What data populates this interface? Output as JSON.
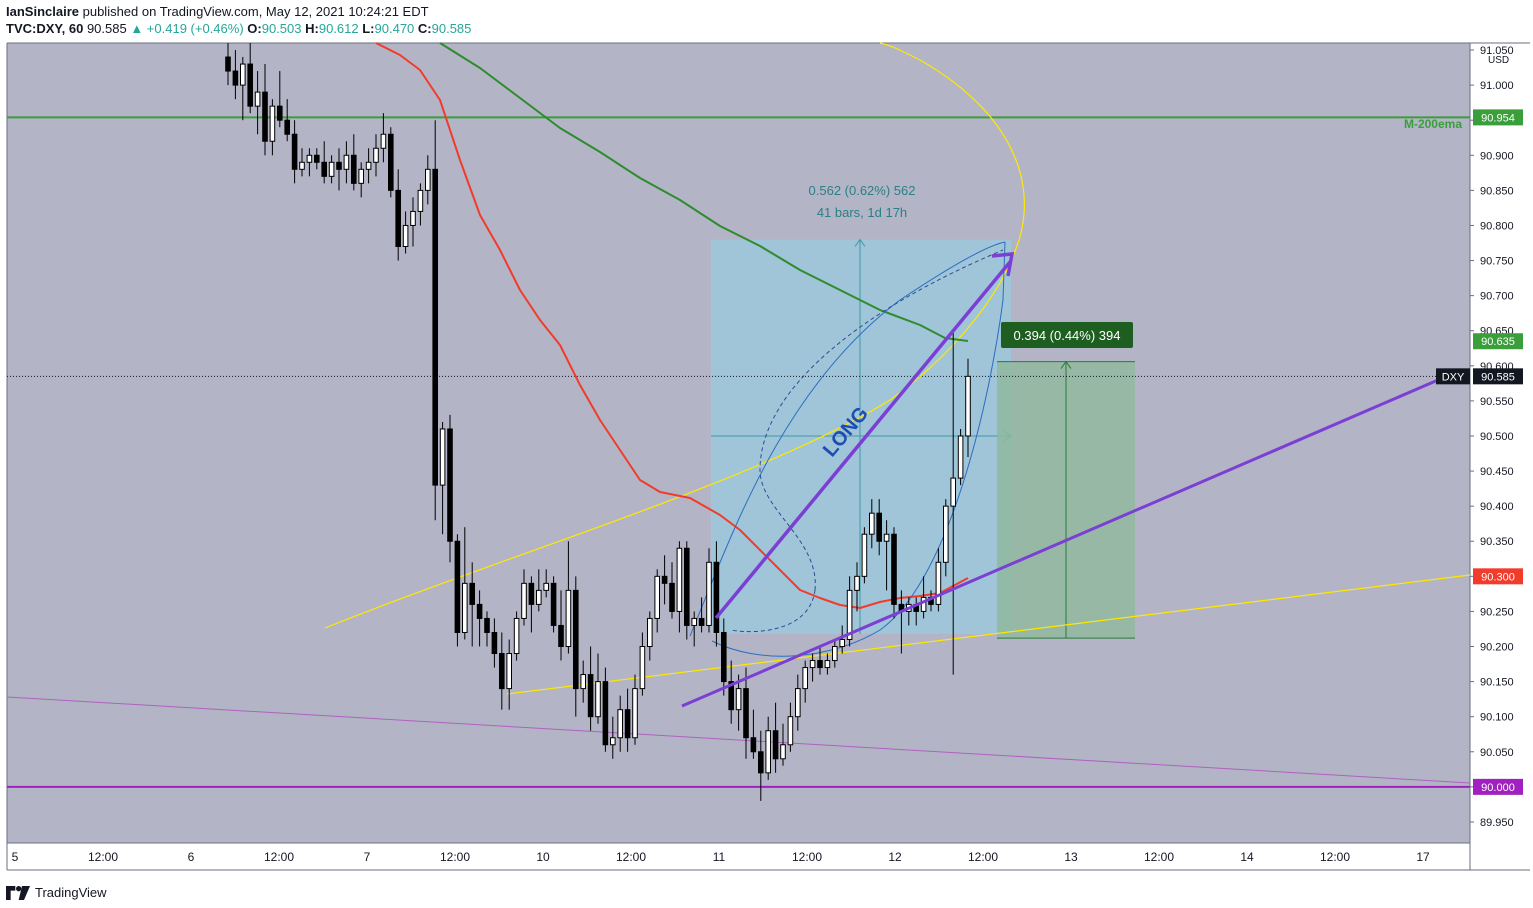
{
  "header": {
    "author": "IanSinclaire",
    "published_text": "published on TradingView.com, May 12, 2021 10:24:21 EDT",
    "symbol": "TVC:DXY, 60",
    "last": "90.585",
    "change": "▲ +0.419 (+0.46%)",
    "o_label": "O:",
    "o": "90.503",
    "h_label": "H:",
    "h": "90.612",
    "l_label": "L:",
    "l": "90.470",
    "c_label": "C:",
    "c": "90.585"
  },
  "footer": {
    "brand": "TradingView"
  },
  "colors": {
    "background": "#b3b5c6",
    "ema200": "#2e8b2e",
    "red_ma": "#f23b2b",
    "yellow": "#ffe800",
    "purple": "#7b3fd4",
    "magenta": "#a020c0",
    "axis_bg": "#ffffff",
    "long_box": "#8fcfe8",
    "profit_box": "#8fb99b"
  },
  "chart_data": {
    "type": "candlestick",
    "symbol": "DXY",
    "interval": "60",
    "currency": "USD",
    "ylim": [
      89.92,
      91.06
    ],
    "y_ticks": [
      "89.950",
      "90.000",
      "90.050",
      "90.100",
      "90.150",
      "90.200",
      "90.250",
      "90.300",
      "90.350",
      "90.400",
      "90.450",
      "90.500",
      "90.550",
      "90.600",
      "90.650",
      "90.700",
      "90.750",
      "90.800",
      "90.850",
      "90.900",
      "90.950",
      "91.000",
      "91.050"
    ],
    "x_ticks": [
      "5",
      "12:00",
      "6",
      "12:00",
      "7",
      "12:00",
      "10",
      "12:00",
      "11",
      "12:00",
      "12",
      "12:00",
      "13",
      "12:00",
      "14",
      "12:00",
      "17"
    ],
    "price_labels": [
      {
        "text": "90.954",
        "value": 90.954,
        "color": "#3a9e3a",
        "note": "M-200ema"
      },
      {
        "text": "90.635",
        "value": 90.635,
        "color": "#3a9e3a"
      },
      {
        "text": "90.585",
        "value": 90.585,
        "color": "#131722",
        "prefix": "DXY"
      },
      {
        "text": "90.300",
        "value": 90.3,
        "color": "#f23b2b"
      },
      {
        "text": "90.000",
        "value": 90.0,
        "color": "#a020c0"
      }
    ],
    "horizontal_lines": [
      {
        "value": 90.954,
        "color": "#3a9e3a"
      },
      {
        "value": 90.0,
        "color": "#a020c0"
      }
    ],
    "annotations": {
      "ema_label": "M-200ema",
      "long_label": "LONG",
      "measure_top_line1": "0.562 (0.62%) 562",
      "measure_top_line2": "41 bars, 1d 17h",
      "measure_right": "0.394 (0.44%) 394"
    },
    "candles": [
      [
        91.04,
        91.06,
        91.0,
        91.02
      ],
      [
        91.02,
        91.05,
        90.98,
        91.0
      ],
      [
        91.0,
        91.04,
        90.95,
        91.03
      ],
      [
        91.03,
        91.06,
        90.96,
        90.97
      ],
      [
        90.97,
        91.02,
        90.93,
        90.99
      ],
      [
        90.99,
        91.03,
        90.9,
        90.92
      ],
      [
        90.92,
        90.98,
        90.9,
        90.97
      ],
      [
        90.97,
        91.02,
        90.94,
        90.95
      ],
      [
        90.95,
        90.98,
        90.92,
        90.93
      ],
      [
        90.93,
        90.95,
        90.86,
        90.88
      ],
      [
        90.88,
        90.91,
        90.87,
        90.89
      ],
      [
        90.89,
        90.91,
        90.87,
        90.9
      ],
      [
        90.9,
        90.91,
        90.88,
        90.89
      ],
      [
        90.89,
        90.92,
        90.86,
        90.87
      ],
      [
        90.87,
        90.9,
        90.86,
        90.89
      ],
      [
        90.89,
        90.91,
        90.85,
        90.88
      ],
      [
        90.88,
        90.92,
        90.86,
        90.9
      ],
      [
        90.9,
        90.93,
        90.85,
        90.86
      ],
      [
        90.86,
        90.89,
        90.84,
        90.88
      ],
      [
        90.88,
        90.91,
        90.86,
        90.89
      ],
      [
        90.89,
        90.93,
        90.87,
        90.91
      ],
      [
        90.91,
        90.96,
        90.89,
        90.93
      ],
      [
        90.93,
        90.94,
        90.84,
        90.85
      ],
      [
        90.85,
        90.88,
        90.75,
        90.77
      ],
      [
        90.77,
        90.82,
        90.76,
        90.8
      ],
      [
        90.8,
        90.84,
        90.77,
        90.82
      ],
      [
        90.82,
        90.86,
        90.8,
        90.85
      ],
      [
        90.85,
        90.9,
        90.83,
        90.88
      ],
      [
        90.88,
        90.95,
        90.38,
        90.43
      ],
      [
        90.43,
        90.52,
        90.36,
        90.51
      ],
      [
        90.51,
        90.53,
        90.32,
        90.35
      ],
      [
        90.35,
        90.36,
        90.2,
        90.22
      ],
      [
        90.22,
        90.37,
        90.21,
        90.29
      ],
      [
        90.29,
        90.32,
        90.2,
        90.26
      ],
      [
        90.26,
        90.28,
        90.2,
        90.24
      ],
      [
        90.24,
        90.25,
        90.2,
        90.22
      ],
      [
        90.22,
        90.24,
        90.17,
        90.19
      ],
      [
        90.19,
        90.22,
        90.11,
        90.14
      ],
      [
        90.14,
        90.21,
        90.11,
        90.19
      ],
      [
        90.19,
        90.25,
        90.18,
        90.24
      ],
      [
        90.24,
        90.31,
        90.23,
        90.29
      ],
      [
        90.29,
        90.3,
        90.22,
        90.26
      ],
      [
        90.26,
        90.31,
        90.25,
        90.28
      ],
      [
        90.28,
        90.31,
        90.27,
        90.29
      ],
      [
        90.29,
        90.3,
        90.22,
        90.23
      ],
      [
        90.23,
        90.28,
        90.18,
        90.2
      ],
      [
        90.2,
        90.35,
        90.19,
        90.28
      ],
      [
        90.28,
        90.3,
        90.1,
        90.14
      ],
      [
        90.14,
        90.18,
        90.12,
        90.16
      ],
      [
        90.16,
        90.2,
        90.08,
        90.1
      ],
      [
        90.1,
        90.19,
        90.09,
        90.15
      ],
      [
        90.15,
        90.17,
        90.05,
        90.06
      ],
      [
        90.06,
        90.1,
        90.04,
        90.07
      ],
      [
        90.07,
        90.13,
        90.05,
        90.11
      ],
      [
        90.11,
        90.14,
        90.05,
        90.07
      ],
      [
        90.07,
        90.16,
        90.06,
        90.14
      ],
      [
        90.14,
        90.22,
        90.13,
        90.2
      ],
      [
        90.2,
        90.25,
        90.18,
        90.24
      ],
      [
        90.24,
        90.31,
        90.22,
        90.3
      ],
      [
        90.3,
        90.33,
        90.26,
        90.29
      ],
      [
        90.29,
        90.32,
        90.24,
        90.25
      ],
      [
        90.25,
        90.35,
        90.22,
        90.34
      ],
      [
        90.34,
        90.35,
        90.21,
        90.23
      ],
      [
        90.23,
        90.25,
        90.2,
        90.24
      ],
      [
        90.24,
        90.27,
        90.22,
        90.23
      ],
      [
        90.23,
        90.34,
        90.22,
        90.32
      ],
      [
        90.32,
        90.35,
        90.2,
        90.22
      ],
      [
        90.22,
        90.24,
        90.13,
        90.15
      ],
      [
        90.15,
        90.18,
        90.09,
        90.11
      ],
      [
        90.11,
        90.16,
        90.08,
        90.14
      ],
      [
        90.14,
        90.17,
        90.04,
        90.07
      ],
      [
        90.07,
        90.11,
        90.04,
        90.05
      ],
      [
        90.05,
        90.08,
        89.98,
        90.02
      ],
      [
        90.02,
        90.1,
        90.01,
        90.08
      ],
      [
        90.08,
        90.12,
        90.02,
        90.04
      ],
      [
        90.04,
        90.09,
        90.03,
        90.06
      ],
      [
        90.06,
        90.12,
        90.05,
        90.1
      ],
      [
        90.1,
        90.16,
        90.08,
        90.14
      ],
      [
        90.14,
        90.18,
        90.12,
        90.17
      ],
      [
        90.17,
        90.19,
        90.15,
        90.18
      ],
      [
        90.18,
        90.2,
        90.16,
        90.17
      ],
      [
        90.17,
        90.19,
        90.16,
        90.18
      ],
      [
        90.18,
        90.21,
        90.17,
        90.2
      ],
      [
        90.2,
        90.23,
        90.19,
        90.21
      ],
      [
        90.21,
        90.3,
        90.2,
        90.28
      ],
      [
        90.28,
        90.32,
        90.25,
        90.3
      ],
      [
        90.3,
        90.37,
        90.29,
        90.36
      ],
      [
        90.36,
        90.41,
        90.34,
        90.39
      ],
      [
        90.39,
        90.41,
        90.33,
        90.35
      ],
      [
        90.35,
        90.38,
        90.28,
        90.36
      ],
      [
        90.36,
        90.37,
        90.24,
        90.26
      ],
      [
        90.26,
        90.28,
        90.19,
        90.25
      ],
      [
        90.25,
        90.27,
        90.23,
        90.26
      ],
      [
        90.26,
        90.27,
        90.23,
        90.25
      ],
      [
        90.25,
        90.3,
        90.24,
        90.27
      ],
      [
        90.27,
        90.28,
        90.25,
        90.26
      ],
      [
        90.26,
        90.34,
        90.25,
        90.32
      ],
      [
        90.32,
        90.41,
        90.3,
        90.4
      ],
      [
        90.4,
        90.65,
        90.16,
        90.44
      ],
      [
        90.44,
        90.51,
        90.43,
        90.5
      ],
      [
        90.5,
        90.61,
        90.47,
        90.585
      ]
    ]
  }
}
